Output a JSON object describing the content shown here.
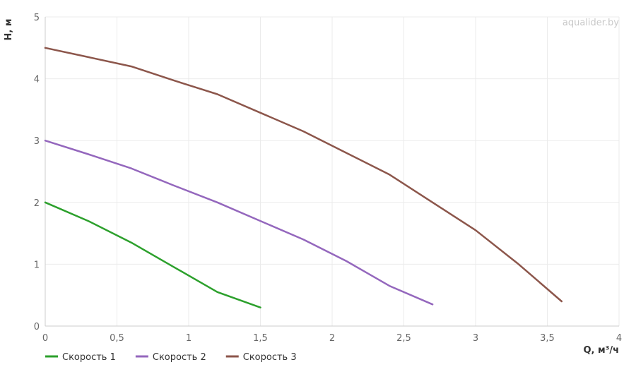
{
  "watermark": "aqualider.by",
  "chart_data": {
    "type": "line",
    "xlabel": "Q, м³/ч",
    "ylabel": "H, м",
    "xlim": [
      0,
      4
    ],
    "ylim": [
      0,
      5
    ],
    "x_ticks": [
      "0",
      "0,5",
      "1",
      "1,5",
      "2",
      "2,5",
      "3",
      "3,5",
      "4"
    ],
    "y_ticks": [
      "0",
      "1",
      "2",
      "3",
      "4",
      "5"
    ],
    "grid": true,
    "legend_position": "bottom-left",
    "series": [
      {
        "name": "Скорость 1",
        "color": "#2ca02c",
        "x": [
          0,
          0.3,
          0.6,
          0.9,
          1.2,
          1.5
        ],
        "y": [
          2.0,
          1.7,
          1.35,
          0.95,
          0.55,
          0.3
        ]
      },
      {
        "name": "Скорость 2",
        "color": "#9467bd",
        "x": [
          0,
          0.3,
          0.6,
          0.9,
          1.2,
          1.5,
          1.8,
          2.1,
          2.4,
          2.7
        ],
        "y": [
          3.0,
          2.78,
          2.55,
          2.27,
          2.0,
          1.7,
          1.4,
          1.05,
          0.65,
          0.35
        ]
      },
      {
        "name": "Скорость 3",
        "color": "#8c564b",
        "x": [
          0,
          0.3,
          0.6,
          0.9,
          1.2,
          1.5,
          1.8,
          2.1,
          2.4,
          2.7,
          3.0,
          3.3,
          3.6
        ],
        "y": [
          4.5,
          4.35,
          4.2,
          3.97,
          3.75,
          3.45,
          3.15,
          2.8,
          2.45,
          2.0,
          1.55,
          1.0,
          0.4
        ]
      }
    ]
  }
}
